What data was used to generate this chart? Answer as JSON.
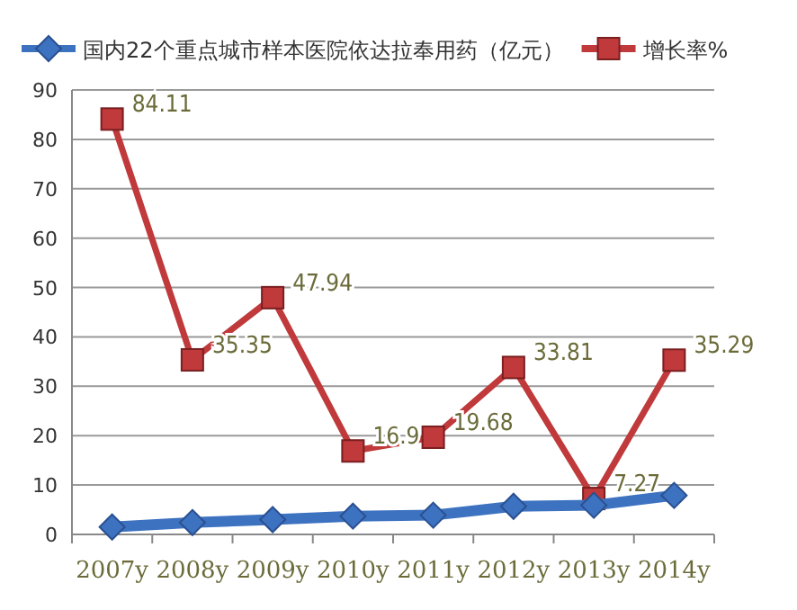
{
  "chart_data": {
    "type": "line",
    "categories": [
      "2007y",
      "2008y",
      "2009y",
      "2010y",
      "2011y",
      "2012y",
      "2013y",
      "2014y"
    ],
    "series": [
      {
        "name": "国内22个重点城市样本医院依达拉奉用药（亿元）",
        "color": "#3d72c0",
        "marker": "diamond",
        "values": [
          1.5,
          2.4,
          3.0,
          3.7,
          3.9,
          5.7,
          5.9,
          7.9
        ]
      },
      {
        "name": "增长率%",
        "color": "#c0393b",
        "marker": "square",
        "values": [
          84.11,
          35.35,
          47.94,
          16.9,
          19.68,
          33.81,
          7.27,
          35.29
        ],
        "value_labels": [
          "84.11",
          "35.35",
          "47.94",
          "16.9",
          "19.68",
          "33.81",
          "7.27",
          "35.29"
        ]
      }
    ],
    "ylim": [
      0,
      90
    ],
    "yticks": [
      0,
      10,
      20,
      30,
      40,
      50,
      60,
      70,
      80,
      90
    ],
    "grid": "y",
    "legend": "top"
  }
}
